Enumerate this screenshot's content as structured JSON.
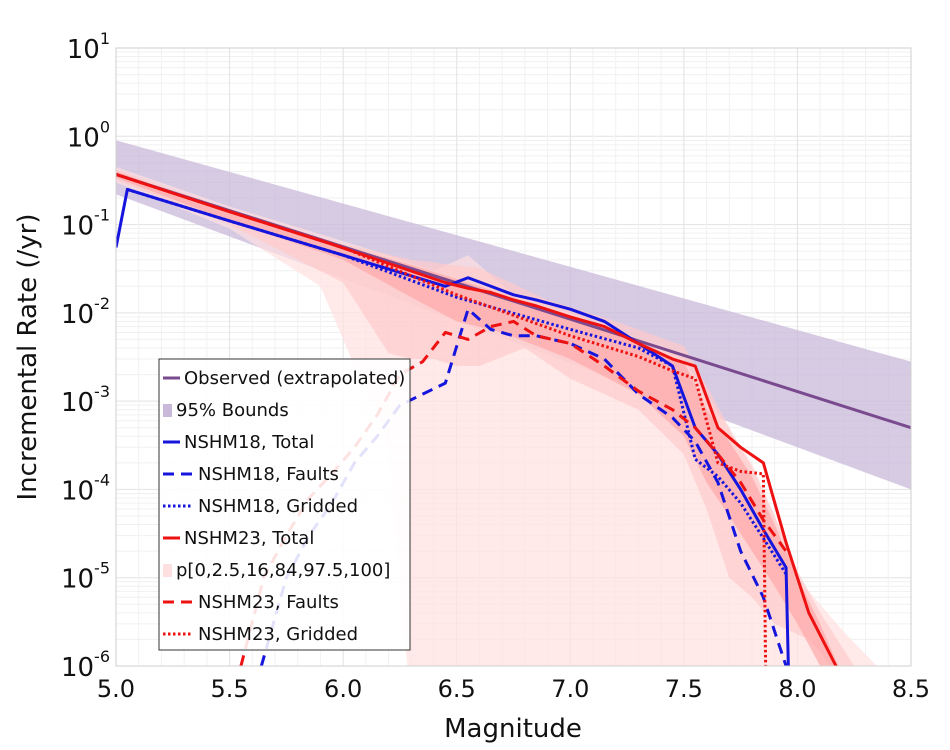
{
  "chart_data": {
    "type": "line",
    "xlabel": "Magnitude",
    "ylabel": "Incremental Rate (/yr)",
    "xlim": [
      5.0,
      8.5
    ],
    "ylim_log10": [
      -6,
      1
    ],
    "y_scale": "log",
    "x_ticks": [
      "5.0",
      "5.5",
      "6.0",
      "6.5",
      "7.0",
      "7.5",
      "8.0",
      "8.5"
    ],
    "y_tick_base": "10",
    "y_ticks": [
      {
        "exp": "1",
        "value": 10
      },
      {
        "exp": "0",
        "value": 1
      },
      {
        "exp": "-1",
        "value": 0.1
      },
      {
        "exp": "-2",
        "value": 0.01
      },
      {
        "exp": "-3",
        "value": 0.001
      },
      {
        "exp": "-4",
        "value": 0.0001
      },
      {
        "exp": "-5",
        "value": 1e-05
      },
      {
        "exp": "-6",
        "value": 1e-06
      }
    ],
    "grid": true,
    "legend_position": "lower-left",
    "colors": {
      "observed": "#7a4a8f",
      "observed_band": "#c9b8da",
      "nshm18": "#1515dd",
      "nshm23": "#ee1111",
      "nshm23_band_outer": "#ffe0e0",
      "nshm23_band_mid": "#ffcaca",
      "nshm23_band_inner": "#ffa8a8"
    },
    "legend": [
      {
        "label": "Observed (extrapolated)",
        "key": "observed"
      },
      {
        "label": "95% Bounds",
        "key": "observed_band"
      },
      {
        "label": "NSHM18, Total",
        "key": "nshm18_total"
      },
      {
        "label": "NSHM18, Faults",
        "key": "nshm18_faults"
      },
      {
        "label": "NSHM18, Gridded",
        "key": "nshm18_gridded"
      },
      {
        "label": "NSHM23, Total",
        "key": "nshm23_total"
      },
      {
        "label": "p[0,2.5,16,84,97.5,100]",
        "key": "nshm23_band"
      },
      {
        "label": "NSHM23, Faults",
        "key": "nshm23_faults"
      },
      {
        "label": "NSHM23, Gridded",
        "key": "nshm23_gridded"
      }
    ],
    "bands": {
      "observed_95": {
        "x": [
          5.0,
          8.5
        ],
        "upper": [
          0.9,
          0.0028
        ],
        "lower": [
          0.22,
          0.0001
        ]
      },
      "nshm23_outer": {
        "x": [
          5.0,
          5.5,
          6.0,
          6.2,
          6.4,
          6.55,
          6.75,
          7.0,
          7.3,
          7.5,
          7.6,
          7.7,
          7.8,
          7.9,
          8.0,
          8.2,
          8.35,
          8.3,
          8.1,
          7.95,
          7.85,
          7.7,
          7.6,
          7.55,
          7.5,
          7.3,
          7.1,
          6.9,
          6.7,
          6.6,
          6.5,
          6.4,
          6.3,
          6.2,
          6.15,
          6.05,
          5.9,
          5.5,
          5.0
        ],
        "y": [
          0.45,
          0.16,
          0.065,
          0.045,
          0.03,
          0.045,
          0.016,
          0.01,
          0.005,
          0.003,
          0.0012,
          0.00045,
          0.0002,
          5e-05,
          1e-05,
          2.5e-06,
          1e-06,
          1e-06,
          1e-06,
          1e-06,
          1e-06,
          1e-06,
          1e-06,
          1e-06,
          1e-06,
          3e-07,
          3e-07,
          3e-07,
          3e-07,
          3e-07,
          3e-07,
          3e-07,
          3e-07,
          0.0003,
          0.0008,
          0.0025,
          0.02,
          0.09,
          0.3
        ]
      },
      "nshm23_mid": {
        "x": [
          5.0,
          5.5,
          6.0,
          6.3,
          6.6,
          6.9,
          7.2,
          7.5,
          7.6,
          7.7,
          7.8,
          7.9,
          8.0,
          8.1,
          8.25,
          8.15,
          8.05,
          7.9,
          7.8,
          7.7,
          7.6,
          7.5,
          7.3,
          7.0,
          6.8,
          6.6,
          6.5,
          6.4,
          6.3,
          6.2,
          6.0,
          5.5,
          5.0
        ],
        "y": [
          0.42,
          0.15,
          0.06,
          0.04,
          0.032,
          0.014,
          0.008,
          0.0042,
          0.0015,
          0.0005,
          0.00018,
          5e-05,
          1.2e-05,
          4e-06,
          1e-06,
          1e-06,
          2e-06,
          3e-06,
          6e-06,
          1e-05,
          6e-05,
          0.00025,
          0.0008,
          0.0018,
          0.004,
          0.0025,
          0.0025,
          0.003,
          0.003,
          0.0035,
          0.022,
          0.1,
          0.32
        ]
      },
      "nshm23_inner": {
        "x": [
          5.0,
          5.5,
          6.0,
          6.3,
          6.6,
          7.0,
          7.3,
          7.5,
          7.6,
          7.7,
          7.8,
          7.9,
          8.0,
          8.1,
          8.18,
          8.1,
          8.0,
          7.9,
          7.8,
          7.7,
          7.6,
          7.5,
          7.3,
          7.0,
          6.7,
          6.5,
          6.3,
          6.0,
          5.5,
          5.0
        ],
        "y": [
          0.4,
          0.14,
          0.057,
          0.035,
          0.02,
          0.009,
          0.0045,
          0.0028,
          0.0008,
          0.00035,
          0.00014,
          4e-05,
          1e-05,
          3e-06,
          1e-06,
          1e-06,
          3e-06,
          8e-06,
          2e-05,
          5e-05,
          0.00012,
          0.0004,
          0.0012,
          0.003,
          0.006,
          0.008,
          0.015,
          0.04,
          0.11,
          0.34
        ]
      }
    },
    "series": [
      {
        "key": "observed",
        "style": "solid",
        "color_key": "observed",
        "x": [
          5.0,
          8.5
        ],
        "y": [
          0.37,
          0.0005
        ]
      },
      {
        "key": "nshm18_total",
        "style": "solid",
        "color_key": "nshm18",
        "x": [
          5.0,
          5.05,
          5.5,
          6.0,
          6.45,
          6.55,
          6.65,
          6.75,
          6.85,
          7.0,
          7.15,
          7.3,
          7.45,
          7.55,
          7.65,
          7.75,
          7.85,
          7.95,
          7.96
        ],
        "y": [
          0.055,
          0.25,
          0.11,
          0.045,
          0.02,
          0.025,
          0.02,
          0.016,
          0.014,
          0.011,
          0.008,
          0.0045,
          0.0025,
          0.0005,
          0.00025,
          0.0001,
          3.5e-05,
          1.3e-05,
          1e-06
        ]
      },
      {
        "key": "nshm18_faults",
        "style": "dashed",
        "color_key": "nshm18",
        "x": [
          5.64,
          5.75,
          5.85,
          5.95,
          6.05,
          6.15,
          6.25,
          6.35,
          6.45,
          6.55,
          6.65,
          6.75,
          6.85,
          7.0,
          7.15,
          7.3,
          7.45,
          7.55,
          7.65,
          7.75,
          7.85,
          7.95
        ],
        "y": [
          1e-06,
          1e-05,
          3e-05,
          7e-05,
          0.0002,
          0.0004,
          0.0009,
          0.0012,
          0.0016,
          0.011,
          0.0065,
          0.0055,
          0.0055,
          0.0045,
          0.003,
          0.0012,
          0.00065,
          0.00035,
          0.00012,
          2e-05,
          6e-06,
          1e-06
        ]
      },
      {
        "key": "nshm18_gridded",
        "style": "dotted",
        "color_key": "nshm18",
        "x": [
          5.05,
          5.5,
          6.0,
          6.5,
          7.0,
          7.3,
          7.45,
          7.55,
          7.65,
          7.75,
          7.85,
          7.95
        ],
        "y": [
          0.25,
          0.11,
          0.045,
          0.015,
          0.0065,
          0.004,
          0.0025,
          0.00022,
          0.00014,
          7e-05,
          2.8e-05,
          1.1e-05
        ]
      },
      {
        "key": "nshm23_total",
        "style": "solid",
        "color_key": "nshm23",
        "x": [
          5.0,
          5.5,
          5.95,
          6.45,
          6.55,
          6.65,
          6.75,
          6.85,
          7.0,
          7.15,
          7.3,
          7.45,
          7.55,
          7.65,
          7.75,
          7.85,
          7.95,
          8.05,
          8.17
        ],
        "y": [
          0.37,
          0.14,
          0.06,
          0.022,
          0.019,
          0.017,
          0.014,
          0.012,
          0.009,
          0.007,
          0.0045,
          0.003,
          0.0025,
          0.0005,
          0.0003,
          0.0002,
          2.5e-05,
          4e-06,
          1e-06
        ]
      },
      {
        "key": "nshm23_faults",
        "style": "dashed",
        "color_key": "nshm23",
        "x": [
          5.55,
          5.65,
          5.75,
          5.85,
          5.95,
          6.05,
          6.15,
          6.25,
          6.35,
          6.45,
          6.55,
          6.65,
          6.75,
          6.85,
          7.0,
          7.15,
          7.3,
          7.45,
          7.55,
          7.65,
          7.75,
          7.85,
          7.95
        ],
        "y": [
          1e-06,
          1e-05,
          3e-05,
          8e-05,
          0.00015,
          0.0003,
          0.0007,
          0.002,
          0.0028,
          0.006,
          0.005,
          0.007,
          0.008,
          0.0055,
          0.0045,
          0.0025,
          0.0013,
          0.0008,
          0.0005,
          0.00025,
          0.00012,
          4.5e-05,
          2e-05
        ]
      },
      {
        "key": "nshm23_gridded",
        "style": "dotted",
        "color_key": "nshm23",
        "x": [
          5.0,
          5.5,
          6.0,
          6.5,
          7.0,
          7.3,
          7.45,
          7.55,
          7.65,
          7.75,
          7.85,
          7.86
        ],
        "y": [
          0.37,
          0.14,
          0.055,
          0.016,
          0.0055,
          0.0032,
          0.0022,
          0.0018,
          0.0002,
          0.00016,
          0.00015,
          1e-06
        ]
      }
    ]
  }
}
